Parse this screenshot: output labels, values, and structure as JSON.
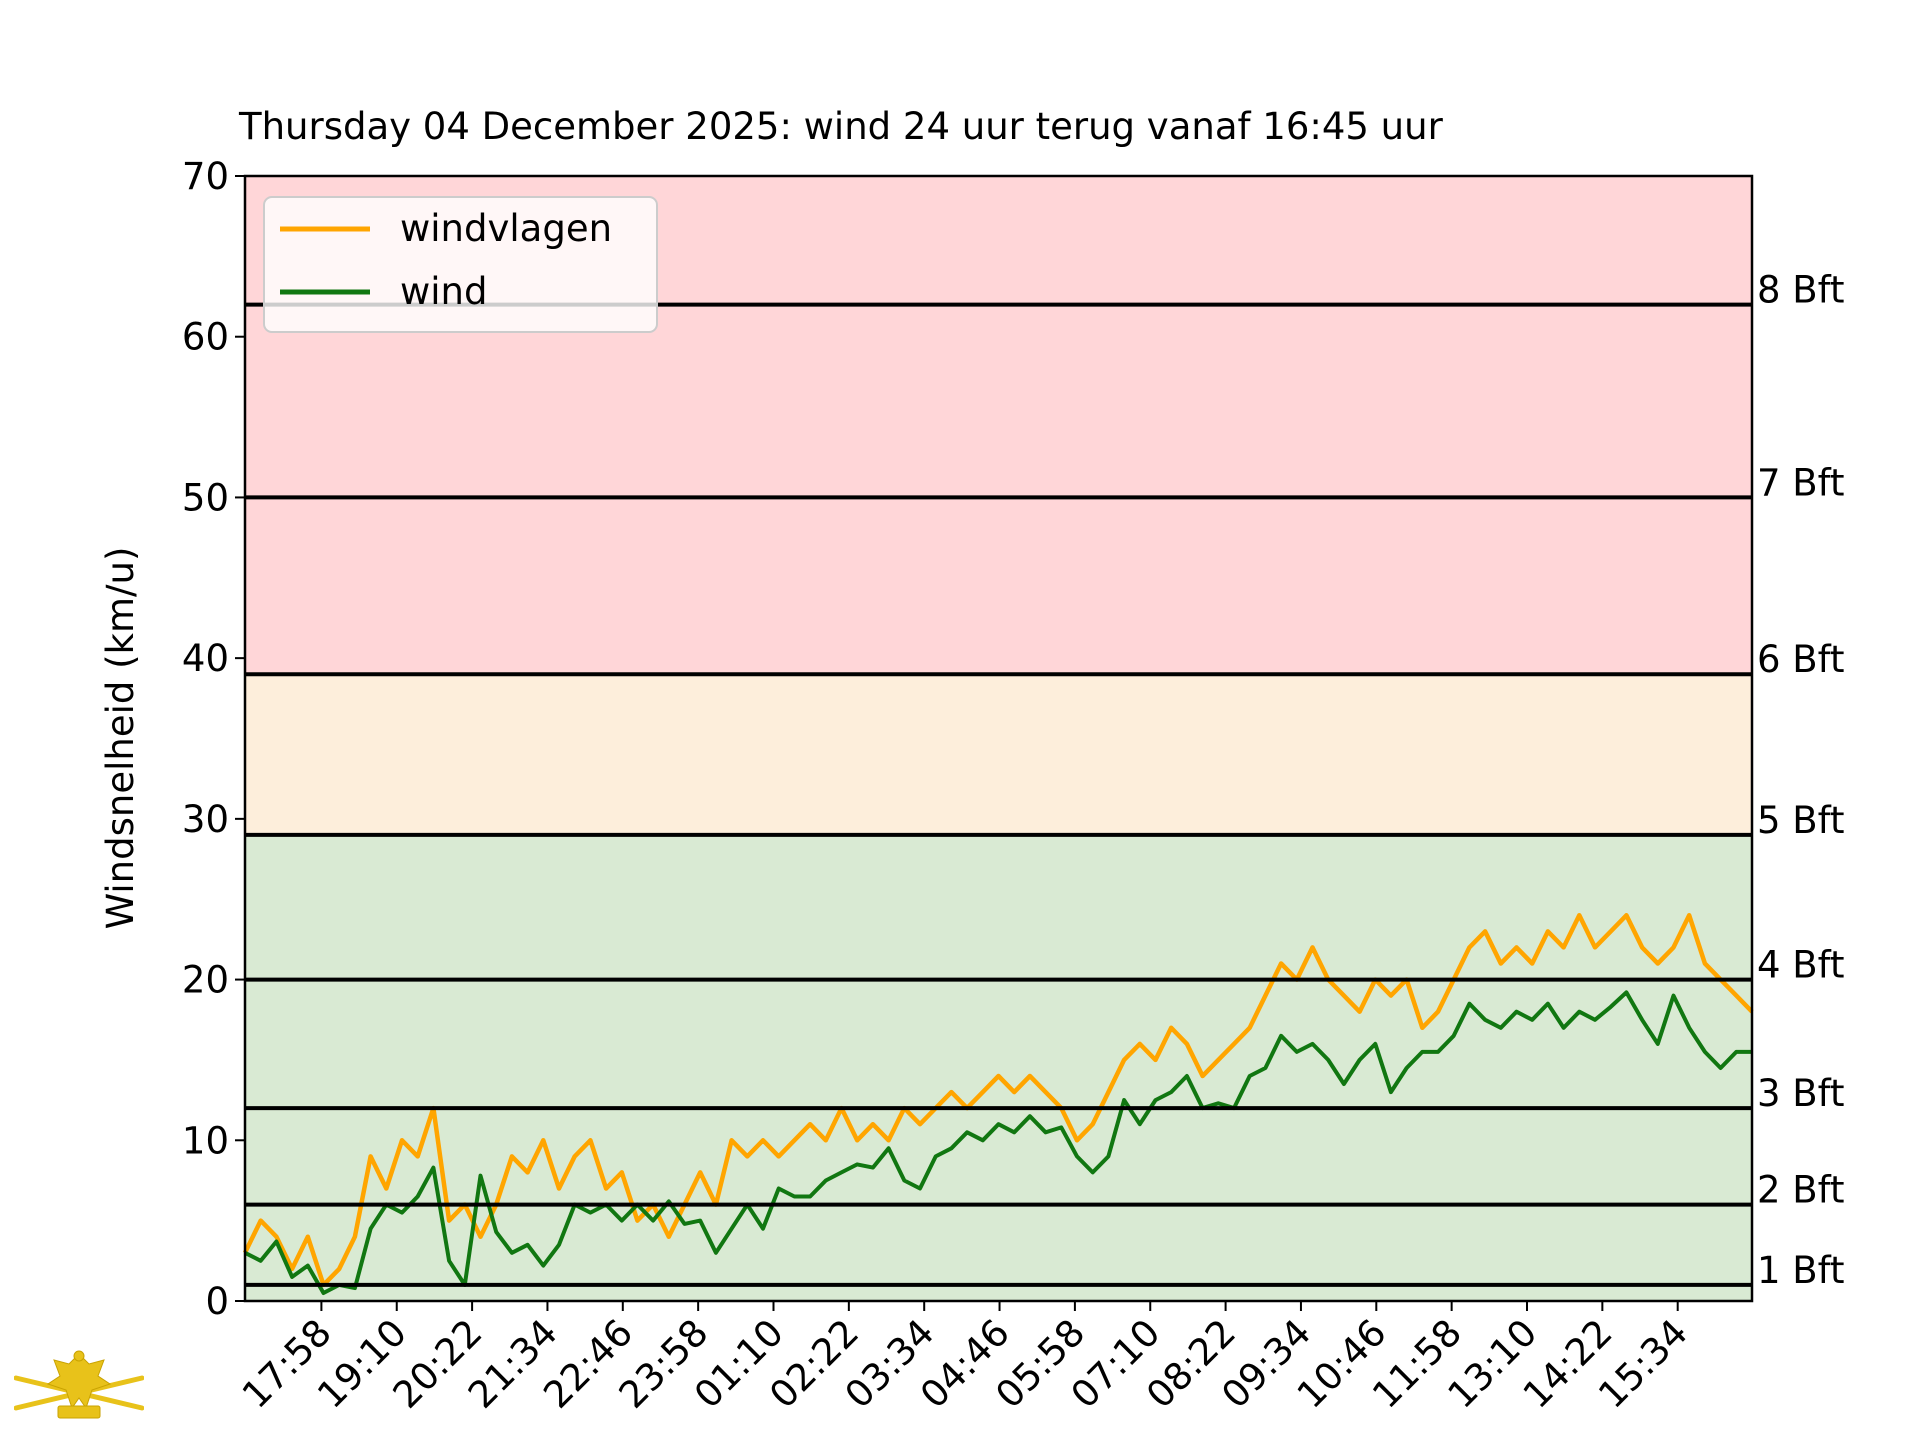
{
  "chart_data": {
    "type": "line",
    "title": "Thursday 04 December 2025: wind 24 uur terug vanaf 16:45 uur",
    "xlabel": "",
    "ylabel": "Windsnelheid (km/u)",
    "ylim": [
      0,
      70
    ],
    "yticks": [
      0,
      10,
      20,
      30,
      40,
      50,
      60,
      70
    ],
    "xlim_hours": [
      0,
      24
    ],
    "xticks": [
      "17:58",
      "19:10",
      "20:22",
      "21:34",
      "22:46",
      "23:58",
      "01:10",
      "02:22",
      "03:34",
      "04:46",
      "05:58",
      "07:10",
      "08:22",
      "09:34",
      "10:46",
      "11:58",
      "13:10",
      "14:22",
      "15:34"
    ],
    "xtick_hours": [
      1.2167,
      2.4167,
      3.6167,
      4.8167,
      6.0167,
      7.2167,
      8.4167,
      9.6167,
      10.8167,
      12.0167,
      13.2167,
      14.4167,
      15.6167,
      16.8167,
      18.0167,
      19.2167,
      20.4167,
      21.6167,
      22.8167
    ],
    "grid": false,
    "legend_position": "upper-left",
    "bands": [
      {
        "from": 0,
        "to": 29,
        "color": "#d9ead3"
      },
      {
        "from": 29,
        "to": 39,
        "color": "#fdeedb"
      },
      {
        "from": 39,
        "to": 70,
        "color": "#ffd6d8"
      }
    ],
    "reference_lines": [
      {
        "value": 1,
        "label": "1 Bft"
      },
      {
        "value": 6,
        "label": "2 Bft"
      },
      {
        "value": 12,
        "label": "3 Bft"
      },
      {
        "value": 20,
        "label": "4 Bft"
      },
      {
        "value": 29,
        "label": "5 Bft"
      },
      {
        "value": 39,
        "label": "6 Bft"
      },
      {
        "value": 50,
        "label": "7 Bft"
      },
      {
        "value": 62,
        "label": "8 Bft"
      }
    ],
    "series": [
      {
        "name": "windvlagen",
        "color": "#ffa500",
        "x": [
          0,
          0.25,
          0.5,
          0.75,
          1.0,
          1.25,
          1.5,
          1.75,
          2.0,
          2.25,
          2.5,
          2.75,
          3.0,
          3.25,
          3.5,
          3.75,
          4.0,
          4.25,
          4.5,
          4.75,
          5.0,
          5.25,
          5.5,
          5.75,
          6.0,
          6.25,
          6.5,
          6.75,
          7.0,
          7.25,
          7.5,
          7.75,
          8.0,
          8.25,
          8.5,
          8.75,
          9.0,
          9.25,
          9.5,
          9.75,
          10.0,
          10.25,
          10.5,
          10.75,
          11.0,
          11.25,
          11.5,
          11.75,
          12.0,
          12.25,
          12.5,
          12.75,
          13.0,
          13.25,
          13.5,
          13.75,
          14.0,
          14.25,
          14.5,
          14.75,
          15.0,
          15.25,
          15.5,
          15.75,
          16.0,
          16.25,
          16.5,
          16.75,
          17.0,
          17.25,
          17.5,
          17.75,
          18.0,
          18.25,
          18.5,
          18.75,
          19.0,
          19.25,
          19.5,
          19.75,
          20.0,
          20.25,
          20.5,
          20.75,
          21.0,
          21.25,
          21.5,
          21.75,
          22.0,
          22.25,
          22.5,
          22.75,
          23.0,
          23.25,
          23.5,
          23.75,
          24.0
        ],
        "values": [
          3,
          5,
          4,
          2,
          4,
          1,
          2,
          4,
          9,
          7,
          10,
          9,
          12,
          5,
          6,
          4,
          6,
          9,
          8,
          10,
          7,
          9,
          10,
          7,
          8,
          5,
          6,
          4,
          6,
          8,
          6,
          10,
          9,
          10,
          9,
          10,
          11,
          10,
          12,
          10,
          11,
          10,
          12,
          11,
          12,
          13,
          12,
          13,
          14,
          13,
          14,
          13,
          12,
          10,
          11,
          13,
          15,
          16,
          15,
          17,
          16,
          14,
          15,
          16,
          17,
          19,
          21,
          20,
          22,
          20,
          19,
          18,
          20,
          19,
          20,
          17,
          18,
          20,
          22,
          23,
          21,
          22,
          21,
          23,
          22,
          24,
          22,
          23,
          24,
          22,
          21,
          22,
          24,
          21,
          20,
          19,
          18
        ]
      },
      {
        "name": "wind",
        "color": "#117711",
        "x": [
          0,
          0.25,
          0.5,
          0.75,
          1.0,
          1.25,
          1.5,
          1.75,
          2.0,
          2.25,
          2.5,
          2.75,
          3.0,
          3.25,
          3.5,
          3.75,
          4.0,
          4.25,
          4.5,
          4.75,
          5.0,
          5.25,
          5.5,
          5.75,
          6.0,
          6.25,
          6.5,
          6.75,
          7.0,
          7.25,
          7.5,
          7.75,
          8.0,
          8.25,
          8.5,
          8.75,
          9.0,
          9.25,
          9.5,
          9.75,
          10.0,
          10.25,
          10.5,
          10.75,
          11.0,
          11.25,
          11.5,
          11.75,
          12.0,
          12.25,
          12.5,
          12.75,
          13.0,
          13.25,
          13.5,
          13.75,
          14.0,
          14.25,
          14.5,
          14.75,
          15.0,
          15.25,
          15.5,
          15.75,
          16.0,
          16.25,
          16.5,
          16.75,
          17.0,
          17.25,
          17.5,
          17.75,
          18.0,
          18.25,
          18.5,
          18.75,
          19.0,
          19.25,
          19.5,
          19.75,
          20.0,
          20.25,
          20.5,
          20.75,
          21.0,
          21.25,
          21.5,
          21.75,
          22.0,
          22.25,
          22.5,
          22.75,
          23.0,
          23.25,
          23.5,
          23.75,
          24.0
        ],
        "values": [
          3,
          2.5,
          3.7,
          1.5,
          2.2,
          0.5,
          1,
          0.8,
          4.5,
          6,
          5.5,
          6.5,
          8.3,
          2.5,
          1,
          7.8,
          4.3,
          3,
          3.5,
          2.2,
          3.5,
          6,
          5.5,
          6,
          5,
          6,
          5,
          6.2,
          4.8,
          5,
          3,
          4.5,
          6,
          4.5,
          7,
          6.5,
          6.5,
          7.5,
          8,
          8.5,
          8.3,
          9.5,
          7.5,
          7,
          9,
          9.5,
          10.5,
          10,
          11,
          10.5,
          11.5,
          10.5,
          10.8,
          9,
          8,
          9,
          12.5,
          11,
          12.5,
          13,
          14,
          12,
          12.3,
          12,
          14,
          14.5,
          16.5,
          15.5,
          16,
          15,
          13.5,
          15,
          16,
          13,
          14.5,
          15.5,
          15.5,
          16.5,
          18.5,
          17.5,
          17,
          18,
          17.5,
          18.5,
          17,
          18,
          17.5,
          18.3,
          19.2,
          17.5,
          16,
          19,
          17,
          15.5,
          14.5,
          15.5,
          15.5
        ]
      }
    ],
    "annotations": [
      "1 Bft",
      "2 Bft",
      "3 Bft",
      "4 Bft",
      "5 Bft",
      "6 Bft",
      "7 Bft",
      "8 Bft"
    ]
  },
  "logo": {
    "name": "rowing-club-crest-icon",
    "color": "#e8c21a"
  }
}
